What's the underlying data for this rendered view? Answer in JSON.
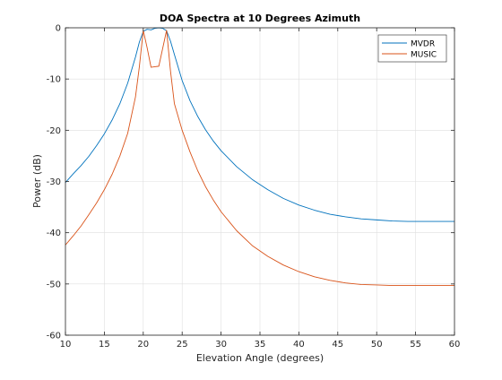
{
  "chart_data": {
    "type": "line",
    "title": "DOA Spectra at 10 Degrees Azimuth",
    "xlabel": "Elevation Angle (degrees)",
    "ylabel": "Power (dB)",
    "xlim": [
      10,
      60
    ],
    "ylim": [
      -60,
      0
    ],
    "xticks": [
      10,
      15,
      20,
      25,
      30,
      35,
      40,
      45,
      50,
      55,
      60
    ],
    "yticks": [
      0,
      -10,
      -20,
      -30,
      -40,
      -50,
      -60
    ],
    "grid": true,
    "legend_position": "top-right",
    "series": [
      {
        "name": "MVDR",
        "color": "#0072bd",
        "x": [
          10,
          11,
          12,
          13,
          14,
          15,
          16,
          17,
          18,
          19,
          19.5,
          20,
          20.5,
          21,
          21.5,
          22,
          22.5,
          23,
          23.5,
          24,
          25,
          26,
          27,
          28,
          29,
          30,
          32,
          34,
          36,
          38,
          40,
          42,
          44,
          46,
          48,
          50,
          52,
          54,
          56,
          58,
          60
        ],
        "values": [
          -30.2,
          -28.5,
          -26.9,
          -25.1,
          -23.0,
          -20.7,
          -18.0,
          -14.8,
          -10.8,
          -5.7,
          -2.8,
          -0.7,
          -0.3,
          -0.4,
          -0.1,
          0.0,
          -0.1,
          -0.6,
          -2.6,
          -5.2,
          -10.3,
          -14.2,
          -17.3,
          -19.9,
          -22.1,
          -24.0,
          -27.1,
          -29.6,
          -31.6,
          -33.3,
          -34.6,
          -35.6,
          -36.4,
          -36.9,
          -37.3,
          -37.5,
          -37.7,
          -37.8,
          -37.8,
          -37.8,
          -37.8
        ]
      },
      {
        "name": "MUSIC",
        "color": "#d95319",
        "x": [
          10,
          11,
          12,
          13,
          14,
          15,
          16,
          17,
          18,
          19,
          19.5,
          20,
          20.5,
          21,
          21.5,
          22,
          22.5,
          23,
          23.5,
          24,
          25,
          26,
          27,
          28,
          29,
          30,
          32,
          34,
          36,
          38,
          40,
          42,
          44,
          46,
          48,
          50,
          52,
          54,
          56,
          58,
          60
        ],
        "values": [
          -42.4,
          -40.6,
          -38.7,
          -36.5,
          -34.2,
          -31.6,
          -28.6,
          -25.0,
          -20.6,
          -13.5,
          -7.6,
          -0.5,
          -3.9,
          -7.7,
          -7.6,
          -7.5,
          -4.0,
          -0.5,
          -8.4,
          -14.8,
          -20.0,
          -24.2,
          -27.9,
          -31.0,
          -33.6,
          -35.9,
          -39.6,
          -42.5,
          -44.6,
          -46.3,
          -47.6,
          -48.6,
          -49.3,
          -49.8,
          -50.1,
          -50.2,
          -50.3,
          -50.3,
          -50.3,
          -50.3,
          -50.3
        ]
      }
    ]
  }
}
